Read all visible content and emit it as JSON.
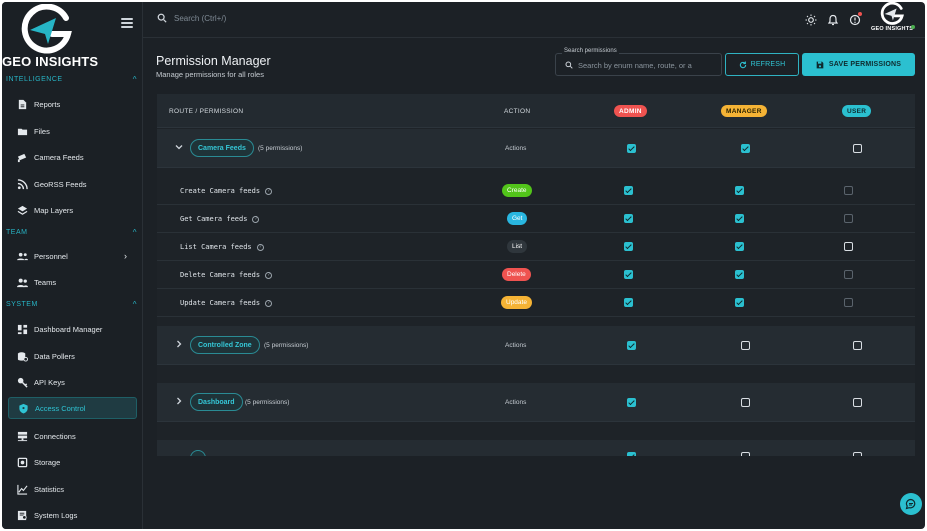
{
  "brand": {
    "name": "GEO INSIGHTS",
    "small_name": "GEO INSIGHTS"
  },
  "sidebar": {
    "sections": [
      {
        "label": "INTELLIGENCE",
        "items": [
          {
            "label": "Reports",
            "icon": "document-icon"
          },
          {
            "label": "Files",
            "icon": "folder-icon"
          },
          {
            "label": "Camera Feeds",
            "icon": "camera-icon"
          },
          {
            "label": "GeoRSS Feeds",
            "icon": "rss-icon"
          },
          {
            "label": "Map Layers",
            "icon": "layers-icon"
          }
        ]
      },
      {
        "label": "TEAM",
        "items": [
          {
            "label": "Personnel",
            "icon": "people-icon"
          },
          {
            "label": "Teams",
            "icon": "group-icon"
          }
        ]
      },
      {
        "label": "SYSTEM",
        "items": [
          {
            "label": "Dashboard Manager",
            "icon": "dashboard-icon"
          },
          {
            "label": "Data Pollers",
            "icon": "database-icon"
          },
          {
            "label": "API Keys",
            "icon": "key-icon"
          },
          {
            "label": "Access Control",
            "icon": "shield-icon",
            "active": true
          },
          {
            "label": "Connections",
            "icon": "server-icon"
          },
          {
            "label": "Storage",
            "icon": "storage-icon"
          },
          {
            "label": "Statistics",
            "icon": "chart-icon"
          },
          {
            "label": "System Logs",
            "icon": "logs-icon"
          }
        ]
      }
    ]
  },
  "topbar": {
    "search_placeholder": "Search (Ctrl+/)"
  },
  "page": {
    "title": "Permission Manager",
    "subtitle": "Manage permissions for all roles",
    "search_label": "Search permissions",
    "search_placeholder": "Search by enum name, route, or a",
    "refresh_label": "REFRESH",
    "save_label": "SAVE PERMISSIONS"
  },
  "table": {
    "col_route": "ROUTE / PERMISSION",
    "col_action": "ACTION",
    "roles": [
      {
        "label": "ADMIN",
        "color": "#ef5350"
      },
      {
        "label": "MANAGER",
        "color": "#f5b335"
      },
      {
        "label": "USER",
        "color": "#2bc0d0"
      }
    ],
    "groups": [
      {
        "name": "Camera Feeds",
        "count": "(5 permissions)",
        "actions": "Actions",
        "admin": true,
        "manager": true,
        "user": false,
        "expanded": true,
        "permissions": [
          {
            "name": "Create Camera feeds",
            "method": "Create",
            "color": "#52c41a",
            "admin": true,
            "manager": true,
            "user": "dim"
          },
          {
            "name": "Get Camera feeds",
            "method": "Get",
            "color": "#29b6e0",
            "admin": true,
            "manager": true,
            "user": "dim"
          },
          {
            "name": "List Camera feeds",
            "method": "List",
            "color": "#2f363c",
            "admin": true,
            "manager": true,
            "user": "off"
          },
          {
            "name": "Delete Camera feeds",
            "method": "Delete",
            "color": "#ef5350",
            "admin": true,
            "manager": true,
            "user": "dim"
          },
          {
            "name": "Update Camera feeds",
            "method": "Update",
            "color": "#f5b335",
            "admin": true,
            "manager": true,
            "user": "dim"
          }
        ]
      },
      {
        "name": "Controlled Zone",
        "count": "(5 permissions)",
        "actions": "Actions",
        "admin": true,
        "manager": false,
        "user": false,
        "expanded": false
      },
      {
        "name": "Dashboard",
        "count": "(5 permissions)",
        "actions": "Actions",
        "admin": true,
        "manager": false,
        "user": false,
        "expanded": false
      }
    ]
  }
}
